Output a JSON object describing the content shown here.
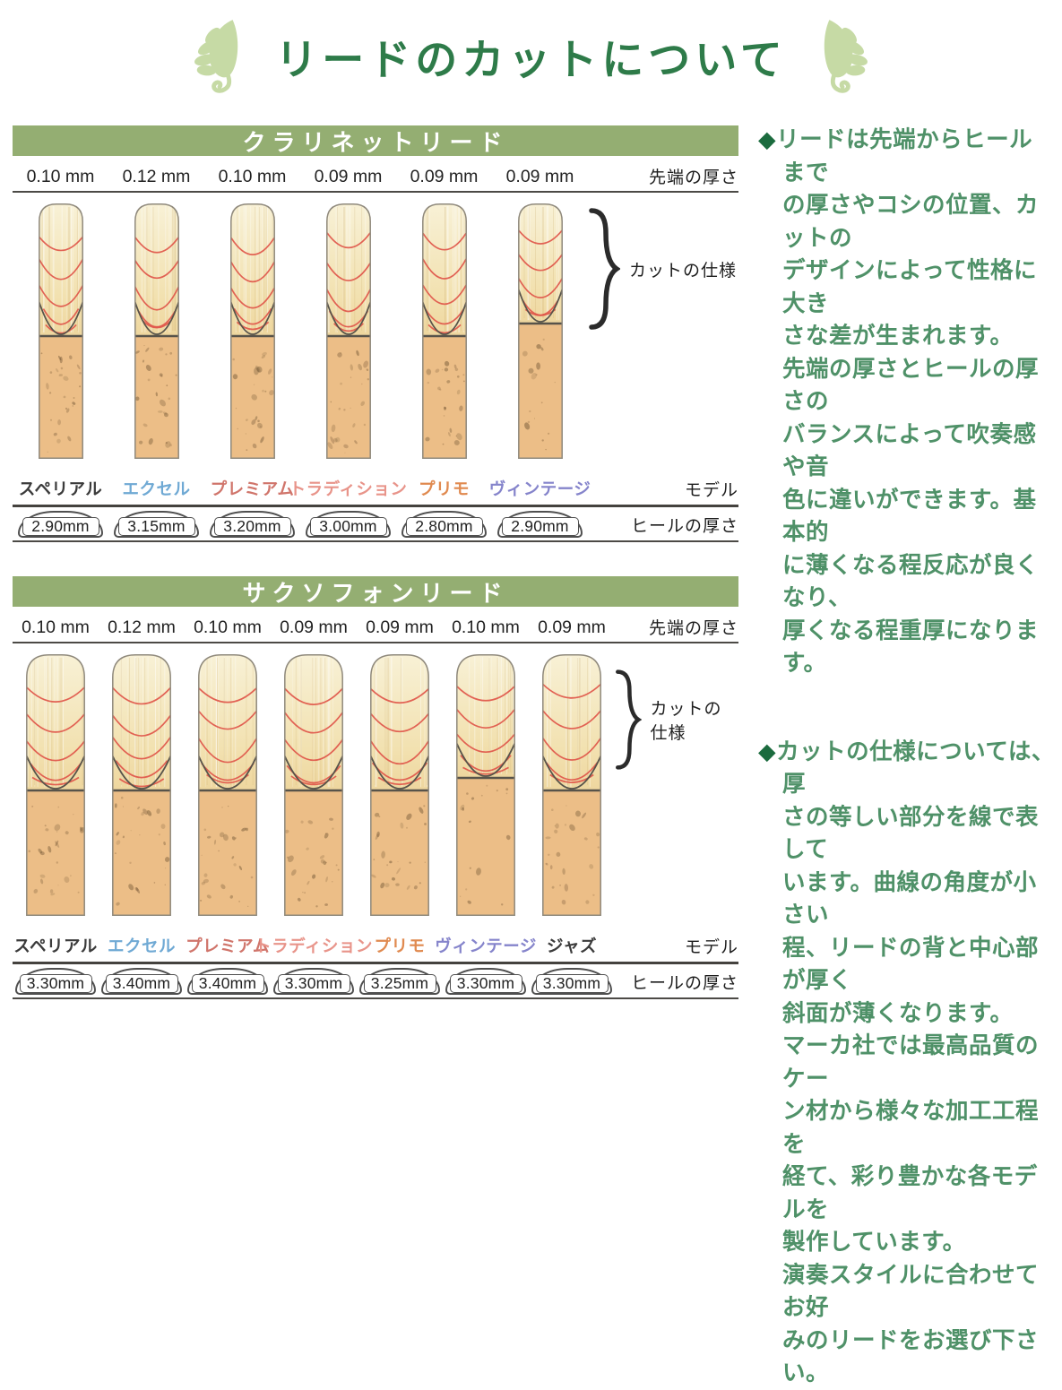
{
  "title": "リードのカットについて",
  "colors": {
    "title_green": "#2e7b49",
    "band_green": "#94ae72",
    "note_green": "#4f9168",
    "bullet_green": "#1b6b3e",
    "leaf_green": "#c6daa5",
    "cut_line_red": "#e0564a"
  },
  "sections": [
    {
      "header": "クラリネットリード",
      "tip_unit_label": "先端の厚さ",
      "cut_label": "カットの仕様",
      "model_label": "モデル",
      "heel_label": "ヒールの厚さ",
      "reeds": [
        {
          "tip": "0.10 mm",
          "model": "スペリアル",
          "color": "#3b3b3b",
          "heel": "2.90mm"
        },
        {
          "tip": "0.12 mm",
          "model": "エクセル",
          "color": "#6fa9d4",
          "heel": "3.15mm"
        },
        {
          "tip": "0.10 mm",
          "model": "プレミアム",
          "color": "#d0756b",
          "heel": "3.20mm"
        },
        {
          "tip": "0.09 mm",
          "model": "トラディション",
          "color": "#e8948a",
          "heel": "3.00mm"
        },
        {
          "tip": "0.09 mm",
          "model": "プリモ",
          "color": "#e08a50",
          "heel": "2.80mm"
        },
        {
          "tip": "0.09 mm",
          "model": "ヴィンテージ",
          "color": "#8584cb",
          "heel": "2.90mm"
        }
      ]
    },
    {
      "header": "サクソフォンリード",
      "tip_unit_label": "先端の厚さ",
      "cut_label": "カットの仕様",
      "model_label": "モデル",
      "heel_label": "ヒールの厚さ",
      "reeds": [
        {
          "tip": "0.10 mm",
          "model": "スペリアル",
          "color": "#3b3b3b",
          "heel": "3.30mm"
        },
        {
          "tip": "0.12 mm",
          "model": "エクセル",
          "color": "#6fa9d4",
          "heel": "3.40mm"
        },
        {
          "tip": "0.10 mm",
          "model": "プレミアム",
          "color": "#d0756b",
          "heel": "3.40mm"
        },
        {
          "tip": "0.09 mm",
          "model": "トラディション",
          "color": "#e8948a",
          "heel": "3.30mm"
        },
        {
          "tip": "0.09 mm",
          "model": "プリモ",
          "color": "#e08a50",
          "heel": "3.25mm"
        },
        {
          "tip": "0.10 mm",
          "model": "ヴィンテージ",
          "color": "#8584cb",
          "heel": "3.30mm"
        },
        {
          "tip": "0.09 mm",
          "model": "ジャズ",
          "color": "#3b3b3b",
          "heel": "3.30mm"
        }
      ]
    }
  ],
  "notes": [
    {
      "bullet": "◆",
      "text": "リードは先端からヒールまで\nの厚さやコシの位置、カットの\nデザインによって性格に大き\nさな差が生まれます。\n先端の厚さとヒールの厚さの\nバランスによって吹奏感や音\n色に違いができます。基本的\nに薄くなる程反応が良くなり、\n厚くなる程重厚になります。"
    },
    {
      "bullet": "◆",
      "text": "カットの仕様については、厚\nさの等しい部分を線で表して\nいます。曲線の角度が小さい\n程、リードの背と中心部が厚く\n斜面が薄くなります。\nマーカ社では最高品質のケー\nン材から様々な加工工程を\n経て、彩り豊かな各モデルを\n製作しています。\n演奏スタイルに合わせてお好\nみのリードをお選び下さい。"
    }
  ]
}
